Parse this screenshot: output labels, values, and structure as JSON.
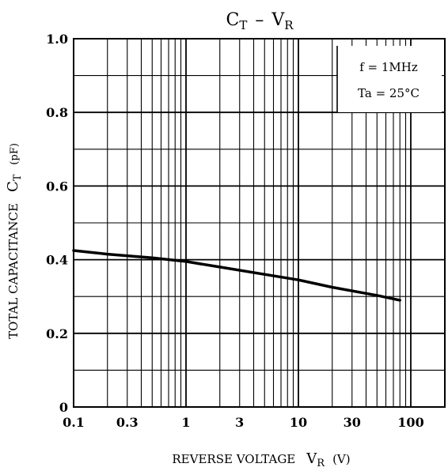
{
  "chart_data": {
    "type": "line",
    "title_main": "C",
    "title_main_sub": "T",
    "title_dash": "–",
    "title_v": "V",
    "title_v_sub": "R",
    "xlabel_text": "REVERSE VOLTAGE",
    "xlabel_symbol": "V",
    "xlabel_symbol_sub": "R",
    "xlabel_unit": "(V)",
    "ylabel_text": "TOTAL CAPACITANCE",
    "ylabel_symbol": "C",
    "ylabel_symbol_sub": "T",
    "ylabel_unit": "(pF)",
    "x_scale": "log",
    "xlim": [
      0.1,
      100
    ],
    "ylim": [
      0,
      1.0
    ],
    "x_tick_labels": [
      {
        "value": 0.1,
        "label": "0.1"
      },
      {
        "value": 0.3,
        "label": "0.3"
      },
      {
        "value": 1,
        "label": "1"
      },
      {
        "value": 3,
        "label": "3"
      },
      {
        "value": 10,
        "label": "10"
      },
      {
        "value": 30,
        "label": "30"
      },
      {
        "value": 100,
        "label": "100"
      }
    ],
    "y_tick_labels": [
      {
        "value": 0,
        "label": "0"
      },
      {
        "value": 0.2,
        "label": "0.2"
      },
      {
        "value": 0.4,
        "label": "0.4"
      },
      {
        "value": 0.6,
        "label": "0.6"
      },
      {
        "value": 0.8,
        "label": "0.8"
      },
      {
        "value": 1.0,
        "label": "1.0"
      }
    ],
    "grid": true,
    "annotations": {
      "freq": "f = 1MHz",
      "temp": "Ta = 25°C",
      "placement": "top-right"
    },
    "series": [
      {
        "x": [
          0.1,
          0.2,
          0.5,
          1,
          2,
          5,
          10,
          20,
          50,
          80
        ],
        "y": [
          0.425,
          0.415,
          0.405,
          0.395,
          0.38,
          0.36,
          0.345,
          0.325,
          0.303,
          0.29
        ]
      }
    ]
  }
}
